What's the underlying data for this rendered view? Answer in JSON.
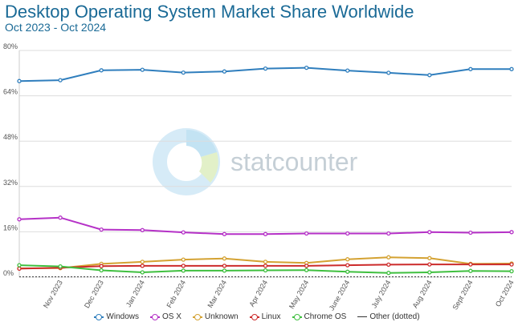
{
  "chart_data": {
    "type": "line",
    "title": "Desktop Operating System Market Share Worldwide",
    "subtitle": "Oct 2023 - Oct 2024",
    "categories": [
      "",
      "Nov 2023",
      "Dec 2023",
      "Jan 2024",
      "Feb 2024",
      "Mar 2024",
      "Apr 2024",
      "May 2024",
      "June 2024",
      "July 2024",
      "Aug 2024",
      "Sept 2024",
      "Oct 2024"
    ],
    "ylim": [
      0,
      80
    ],
    "yticks": [
      "0%",
      "16%",
      "32%",
      "48%",
      "64%",
      "80%"
    ],
    "grid": true,
    "legend_position": "bottom",
    "watermark": "statcounter",
    "series": [
      {
        "name": "Windows",
        "color": "#2f7ebd",
        "values": [
          69.2,
          69.5,
          73.0,
          73.2,
          72.2,
          72.6,
          73.6,
          73.9,
          72.9,
          72.1,
          71.3,
          73.4,
          73.4
        ]
      },
      {
        "name": "OS X",
        "color": "#b531c7",
        "values": [
          20.4,
          21.0,
          16.8,
          16.6,
          15.8,
          15.2,
          15.2,
          15.4,
          15.4,
          15.4,
          15.9,
          15.7,
          15.9
        ]
      },
      {
        "name": "Unknown",
        "color": "#d4a232",
        "values": [
          3.1,
          3.2,
          4.7,
          5.4,
          6.2,
          6.6,
          5.4,
          5.0,
          6.3,
          7.0,
          6.7,
          4.7,
          4.8
        ]
      },
      {
        "name": "Linux",
        "color": "#cc2b2b",
        "values": [
          3.0,
          3.3,
          3.9,
          4.0,
          4.0,
          4.0,
          4.0,
          4.0,
          4.2,
          4.4,
          4.5,
          4.5,
          4.5
        ]
      },
      {
        "name": "Chrome OS",
        "color": "#3fbf3f",
        "values": [
          4.2,
          3.8,
          2.4,
          1.7,
          2.3,
          2.3,
          2.4,
          2.5,
          1.9,
          1.5,
          1.7,
          2.2,
          2.1
        ]
      },
      {
        "name": "Other (dotted)",
        "color": "#333333",
        "values": [
          0.1,
          0.1,
          0.1,
          0.1,
          0.1,
          0.1,
          0.1,
          0.1,
          0.1,
          0.1,
          0.1,
          0.1,
          0.1
        ],
        "dotted": true
      }
    ]
  }
}
